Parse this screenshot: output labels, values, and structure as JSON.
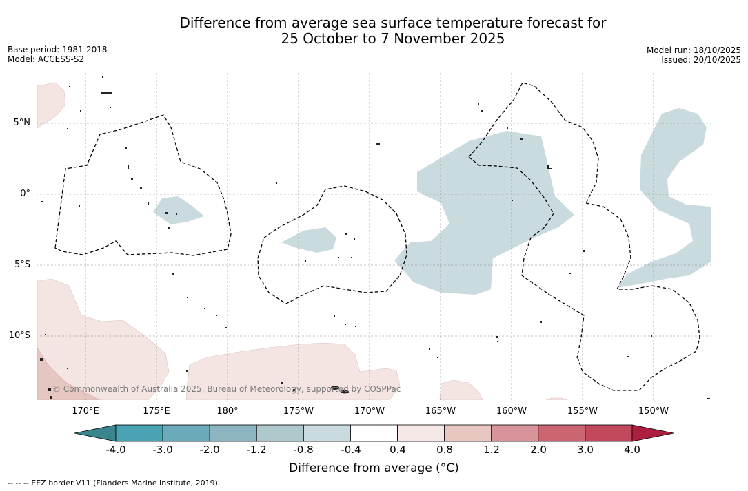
{
  "title": {
    "line1": "Difference from average sea surface temperature forecast for",
    "line2": "25 October to 7 November 2025"
  },
  "meta": {
    "base_period": "Base period: 1981-2018",
    "model": "Model: ACCESS-S2",
    "model_run": "Model run: 18/10/2025",
    "issued": "Issued: 20/10/2025"
  },
  "axes": {
    "lat_labels": [
      "5°N",
      "0°",
      "5°S",
      "10°S"
    ],
    "lon_labels": [
      "170°E",
      "175°E",
      "180°",
      "175°W",
      "170°W",
      "165°W",
      "160°W",
      "155°W",
      "150°W"
    ]
  },
  "colorbar": {
    "ticks": [
      "-4.0",
      "-3.0",
      "-2.0",
      "-1.2",
      "-0.8",
      "-0.4",
      "0.4",
      "0.8",
      "1.2",
      "2.0",
      "3.0",
      "4.0"
    ],
    "colors": [
      "#3b858f",
      "#4aa3b3",
      "#6baab9",
      "#8db5c1",
      "#aec8cc",
      "#c9dbdf",
      "#ffffff",
      "#f6e8e6",
      "#e8c7c1",
      "#d9949b",
      "#cb6570",
      "#c1495b",
      "#ad1f40"
    ],
    "title": "Difference from average (°C)"
  },
  "copyright": "© Commonwealth of Australia 2025, Bureau of Meteorology, supported by COSPPac",
  "footer": "-- -- -- EEZ border V11 (Flanders Marine Institute, 2019)."
}
